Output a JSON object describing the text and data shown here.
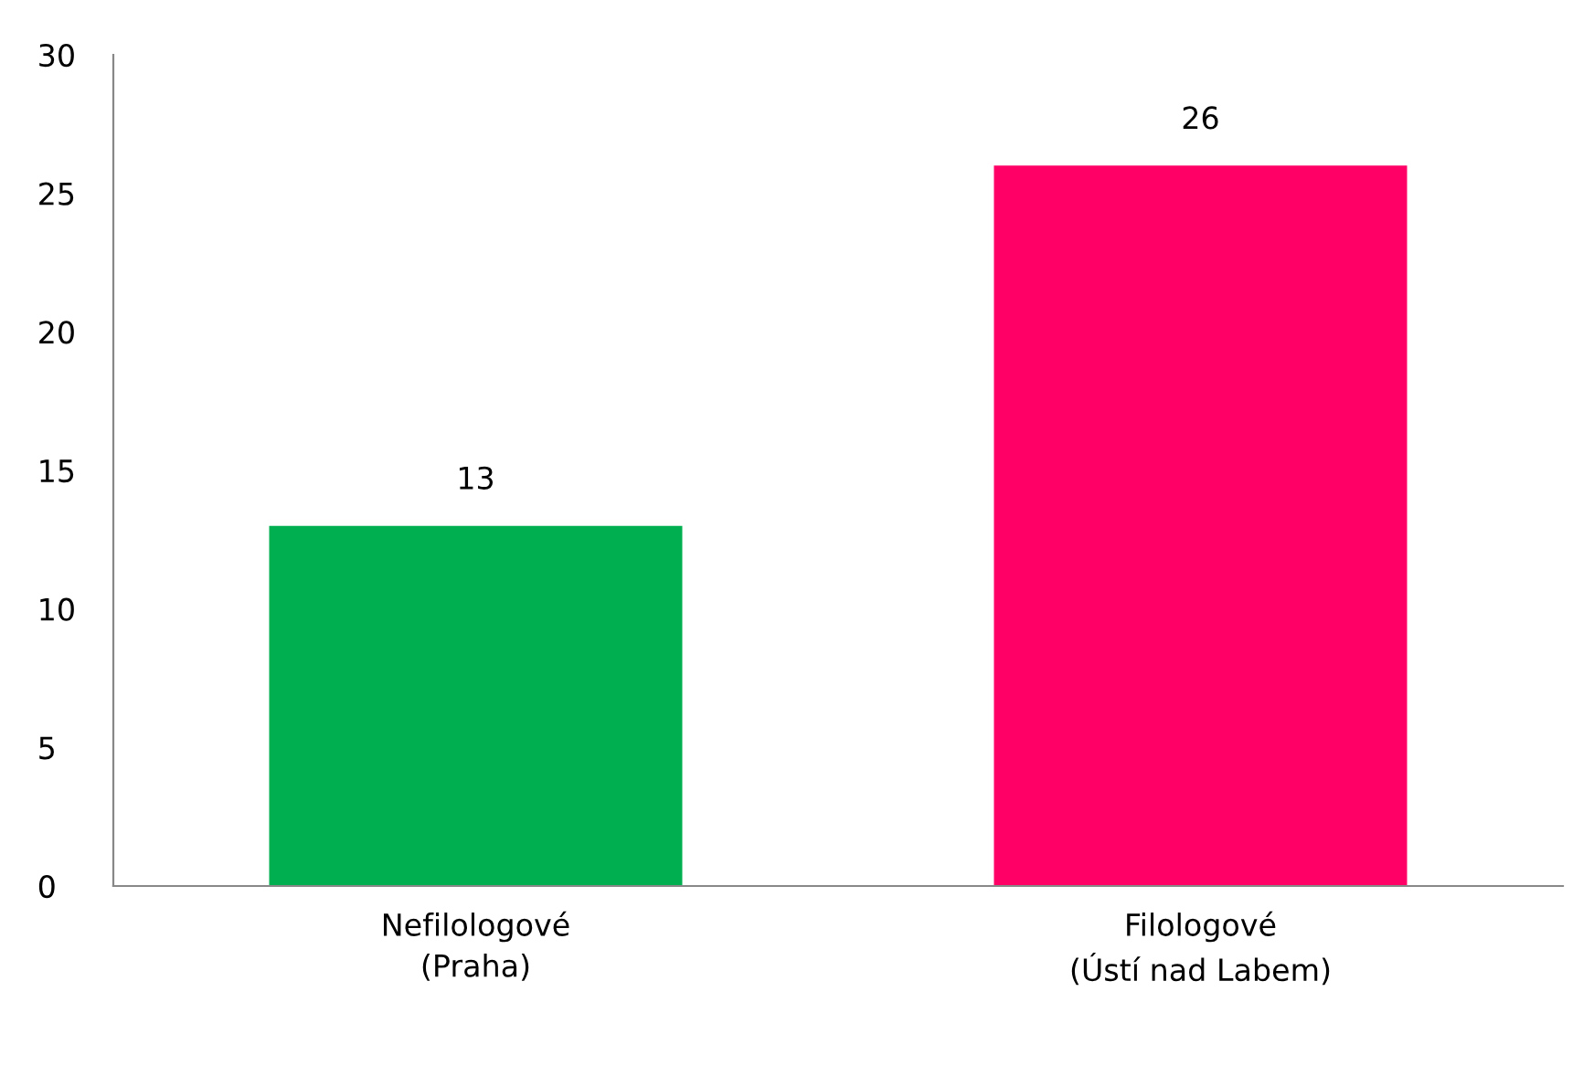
{
  "chart_data": {
    "type": "bar",
    "categories": [
      "Nefilologové\n(Praha)",
      "Filologové\n(Ústí nad Labem)"
    ],
    "values": [
      13,
      26
    ],
    "colors": [
      "#00b050",
      "#ff0066"
    ],
    "ylim": [
      0,
      30
    ],
    "yticks": [
      0,
      5,
      10,
      15,
      20,
      25,
      30
    ],
    "grid": false,
    "legend": false,
    "data_labels": true
  }
}
